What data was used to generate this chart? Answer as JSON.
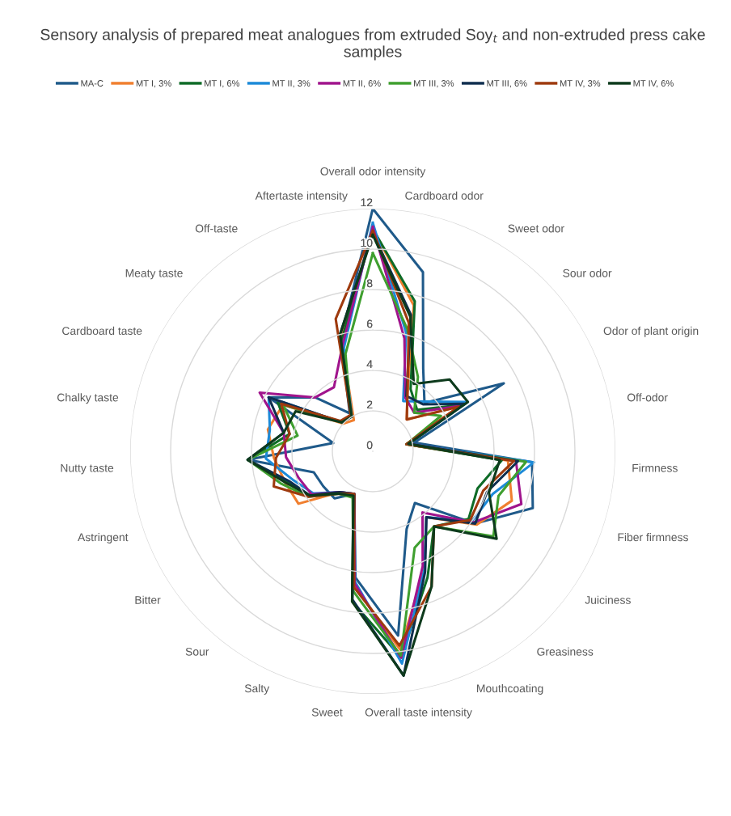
{
  "chart_data": {
    "type": "radar",
    "title": "Sensory analysis of prepared meat analogues from extruded Soy$_{t}$ and non-extruded press cake samples",
    "categories": [
      "Overall odor intensity",
      "Cardboard odor",
      "Sweet odor",
      "Sour odor",
      "Odor of plant origin",
      "Off-odor",
      "Firmness",
      "Fiber firmness",
      "Juiciness",
      "Greasiness",
      "Mouthcoating",
      "Overall taste intensity",
      "Sweet",
      "Salty",
      "Sour",
      "Bitter",
      "Astringent",
      "Nutty taste",
      "Chalky taste",
      "Cardboard taste",
      "Meaty taste",
      "Off-taste",
      "Aftertaste intensity"
    ],
    "ylim": [
      0,
      12
    ],
    "yticks": [
      0,
      2,
      4,
      6,
      8,
      10,
      12
    ],
    "grid": "y",
    "legend": "top",
    "marker": "none",
    "line_style": "solid",
    "series": [
      {
        "name": "MA-C",
        "color": "#1f5a8a",
        "values": [
          12,
          9.2,
          4.8,
          3.5,
          7.3,
          2.1,
          7.9,
          8.4,
          6.2,
          3.3,
          4.2,
          9.2,
          6.3,
          2.3,
          3.0,
          3.0,
          3.1,
          6.2,
          2.0,
          5.8,
          3.9,
          2.2,
          5.8
        ]
      },
      {
        "name": "MT I, 3%",
        "color": "#f07f2f",
        "values": [
          11,
          7.5,
          3.3,
          2.3,
          4.8,
          1.7,
          6.7,
          7.3,
          6.3,
          4.2,
          6.4,
          9.9,
          6.7,
          2.3,
          2.6,
          4.5,
          4.6,
          4.9,
          5.3,
          5.0,
          2.0,
          1.8,
          5.8
        ]
      },
      {
        "name": "MT I, 6%",
        "color": "#0e6b27",
        "values": [
          11,
          7.7,
          3.6,
          3.0,
          5.0,
          1.7,
          6.4,
          5.5,
          5.8,
          4.8,
          6.8,
          10.3,
          7.5,
          2.4,
          2.7,
          3.8,
          4.5,
          6.2,
          4.2,
          5.3,
          2.1,
          2.1,
          5.7
        ]
      },
      {
        "name": "MT II, 3%",
        "color": "#1c8ad8",
        "values": [
          11.3,
          6.1,
          2.9,
          3.6,
          5.3,
          1.8,
          8.0,
          6.3,
          6.0,
          4.2,
          6.4,
          10.6,
          6.5,
          2.3,
          2.6,
          3.6,
          4.2,
          5.3,
          5.2,
          5.8,
          2.1,
          2.0,
          5.3
        ]
      },
      {
        "name": "MT II, 6%",
        "color": "#a0148c",
        "values": [
          11.1,
          5.8,
          3.1,
          2.8,
          4.9,
          1.8,
          7.1,
          7.8,
          6.1,
          3.9,
          6.2,
          10.3,
          6.6,
          2.3,
          2.6,
          3.7,
          3.9,
          4.3,
          4.5,
          6.3,
          3.9,
          3.7,
          5.5
        ]
      },
      {
        "name": "MT III, 3%",
        "color": "#3f9f2f",
        "values": [
          9.8,
          6.3,
          4.3,
          2.8,
          3.8,
          1.7,
          7.6,
          6.6,
          7.3,
          4.8,
          5.2,
          10.2,
          7.0,
          2.5,
          2.7,
          3.9,
          4.8,
          6.2,
          3.8,
          5.0,
          2.1,
          2.1,
          5.0
        ]
      },
      {
        "name": "MT III, 6%",
        "color": "#0f2e4f",
        "values": [
          10.8,
          7.0,
          3.2,
          3.4,
          5.1,
          1.8,
          7.2,
          6.0,
          6.2,
          4.2,
          6.5,
          11.2,
          7.4,
          2.3,
          2.6,
          3.8,
          4.4,
          6.2,
          4.5,
          5.8,
          2.1,
          2.1,
          6.0
        ]
      },
      {
        "name": "MT IV, 3%",
        "color": "#9e3a0e",
        "values": [
          10.9,
          6.6,
          3.3,
          2.3,
          4.8,
          1.7,
          7.0,
          5.8,
          5.9,
          4.8,
          7.3,
          9.7,
          6.8,
          2.3,
          2.7,
          3.9,
          5.2,
          4.8,
          4.2,
          5.1,
          2.2,
          2.1,
          6.8
        ]
      },
      {
        "name": "MT IV, 6%",
        "color": "#0d3a1c",
        "values": [
          10.7,
          6.9,
          3.9,
          5.2,
          5.3,
          1.8,
          6.3,
          6.1,
          7.5,
          4.8,
          7.3,
          11.2,
          7.5,
          2.4,
          2.7,
          3.8,
          4.6,
          6.2,
          4.5,
          4.3,
          2.1,
          2.0,
          6.0
        ]
      }
    ]
  }
}
